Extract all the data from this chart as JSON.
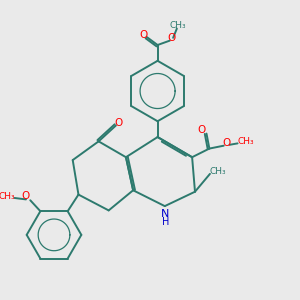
{
  "bg_color": "#eaeaea",
  "bond_color": "#2d7a6e",
  "oxygen_color": "#ff0000",
  "nitrogen_color": "#0000cc",
  "lw": 1.4,
  "figsize": [
    3.0,
    3.0
  ],
  "dpi": 100,
  "xlim": [
    0,
    10
  ],
  "ylim": [
    0,
    10
  ]
}
